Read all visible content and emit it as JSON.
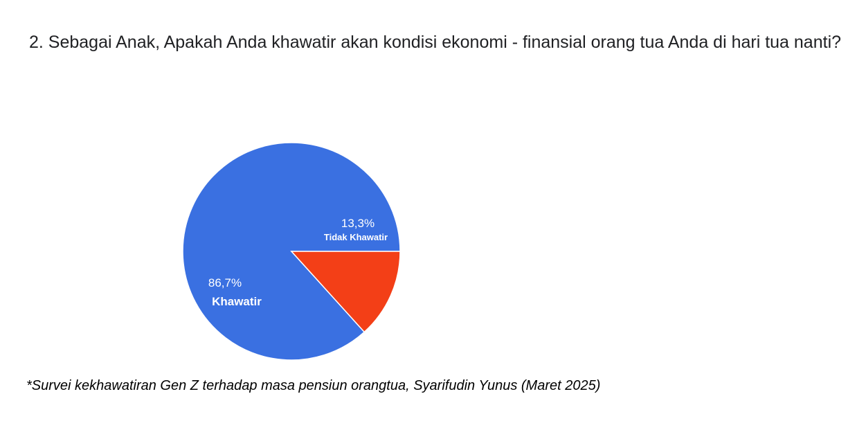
{
  "chart_data": {
    "type": "pie",
    "title": "2. Sebagai Anak, Apakah Anda khawatir akan kondisi ekonomi - finansial orang tua Anda di hari tua nanti?",
    "slices": [
      {
        "label": "Khawatir",
        "value": 86.7,
        "value_label": "86,7%",
        "color": "#3a70e1"
      },
      {
        "label": "Tidak Khawatir",
        "value": 13.3,
        "value_label": "13,3%",
        "color": "#f33f17"
      }
    ],
    "start_angle_deg": 0,
    "direction": "counterclockwise",
    "legend": "none"
  },
  "footnote": "*Survei kekhawatiran Gen Z terhadap masa pensiun orangtua, Syarifudin Yunus (Maret 2025)"
}
